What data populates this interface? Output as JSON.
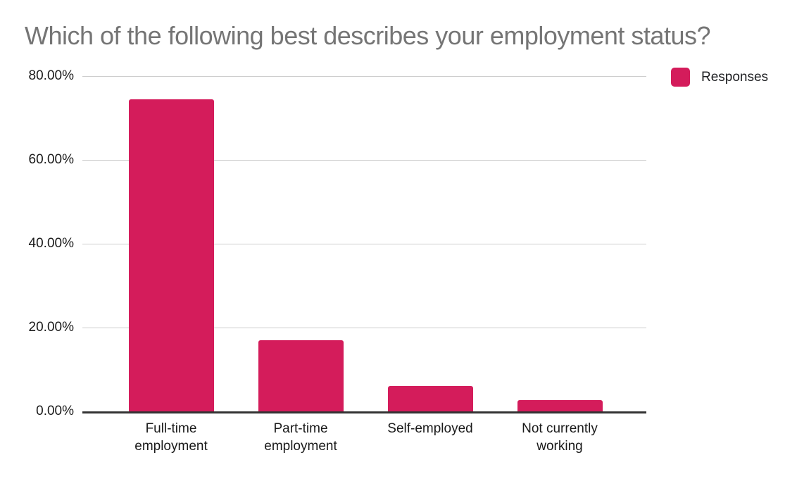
{
  "chart_data": {
    "type": "bar",
    "title": "Which of the following best describes your employment status?",
    "categories": [
      "Full-time employment",
      "Part-time employment",
      "Self-employed",
      "Not currently working"
    ],
    "series": [
      {
        "name": "Responses",
        "values": [
          74.4,
          16.9,
          6.0,
          2.7
        ]
      }
    ],
    "value_unit": "percent",
    "xlabel": "",
    "ylabel": "",
    "ylim": [
      0,
      80
    ],
    "y_ticks": [
      {
        "value": 80,
        "label": "80.00%"
      },
      {
        "value": 60,
        "label": "60.00%"
      },
      {
        "value": 40,
        "label": "40.00%"
      },
      {
        "value": 20,
        "label": "20.00%"
      },
      {
        "value": 0,
        "label": "0.00%"
      }
    ],
    "grid": true,
    "legend": {
      "position": "top-right",
      "entries": [
        {
          "label": "Responses",
          "color": "#D41C5B"
        }
      ]
    },
    "colors": {
      "bar": "#D41C5B",
      "title_text": "#757575",
      "axis_text": "#1a1a1a",
      "gridline": "#cdcdcd",
      "axis_line": "#333333",
      "legend_text": "#202124",
      "background": "#ffffff"
    }
  }
}
